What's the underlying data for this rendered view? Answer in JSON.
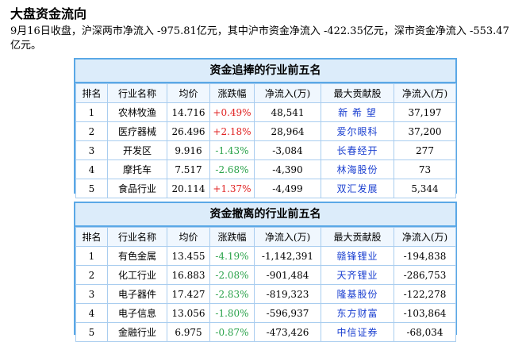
{
  "title": "大盘资金流向",
  "summary": "9月16日收盘，沪深两市净流入 -975.81亿元，其中沪市资金净流入 -422.35亿元，深市资金净流入 -553.47亿元。",
  "headers": [
    "排名",
    "行业名称",
    "均价",
    "涨跌幅",
    "净流入(万)",
    "最大贡献股",
    "净流入(万)"
  ],
  "tables": [
    {
      "caption": "资金追捧的行业前五名",
      "rows": [
        {
          "rank": "1",
          "industry": "农林牧渔",
          "price": "14.716",
          "change": "+0.49%",
          "dir": "up",
          "inflow": "48,541",
          "stock": "新 希 望",
          "stock_inflow": "37,197"
        },
        {
          "rank": "2",
          "industry": "医疗器械",
          "price": "26.496",
          "change": "+2.18%",
          "dir": "up",
          "inflow": "28,964",
          "stock": "爱尔眼科",
          "stock_inflow": "37,200"
        },
        {
          "rank": "3",
          "industry": "开发区",
          "price": "9.916",
          "change": "-1.43%",
          "dir": "down",
          "inflow": "-3,084",
          "stock": "长春经开",
          "stock_inflow": "277"
        },
        {
          "rank": "4",
          "industry": "摩托车",
          "price": "7.517",
          "change": "-2.68%",
          "dir": "down",
          "inflow": "-4,390",
          "stock": "林海股份",
          "stock_inflow": "73"
        },
        {
          "rank": "5",
          "industry": "食品行业",
          "price": "20.114",
          "change": "+1.37%",
          "dir": "up",
          "inflow": "-4,499",
          "stock": "双汇发展",
          "stock_inflow": "5,344"
        }
      ]
    },
    {
      "caption": "资金撤离的行业前五名",
      "rows": [
        {
          "rank": "1",
          "industry": "有色金属",
          "price": "13.455",
          "change": "-4.19%",
          "dir": "down",
          "inflow": "-1,142,391",
          "stock": "赣锋锂业",
          "stock_inflow": "-194,838"
        },
        {
          "rank": "2",
          "industry": "化工行业",
          "price": "16.883",
          "change": "-2.08%",
          "dir": "down",
          "inflow": "-901,484",
          "stock": "天齐锂业",
          "stock_inflow": "-286,753"
        },
        {
          "rank": "3",
          "industry": "电子器件",
          "price": "17.427",
          "change": "-2.83%",
          "dir": "down",
          "inflow": "-819,323",
          "stock": "隆基股份",
          "stock_inflow": "-122,278"
        },
        {
          "rank": "4",
          "industry": "电子信息",
          "price": "13.056",
          "change": "-1.80%",
          "dir": "down",
          "inflow": "-596,937",
          "stock": "东方财富",
          "stock_inflow": "-103,864"
        },
        {
          "rank": "5",
          "industry": "金融行业",
          "price": "6.975",
          "change": "-0.87%",
          "dir": "down",
          "inflow": "-473,426",
          "stock": "中信证券",
          "stock_inflow": "-68,034"
        }
      ]
    }
  ],
  "colors": {
    "up": "#e02222",
    "down": "#2aa24a",
    "stock_link": "#1a3fd0",
    "panel_border": "#5aa8e6"
  }
}
